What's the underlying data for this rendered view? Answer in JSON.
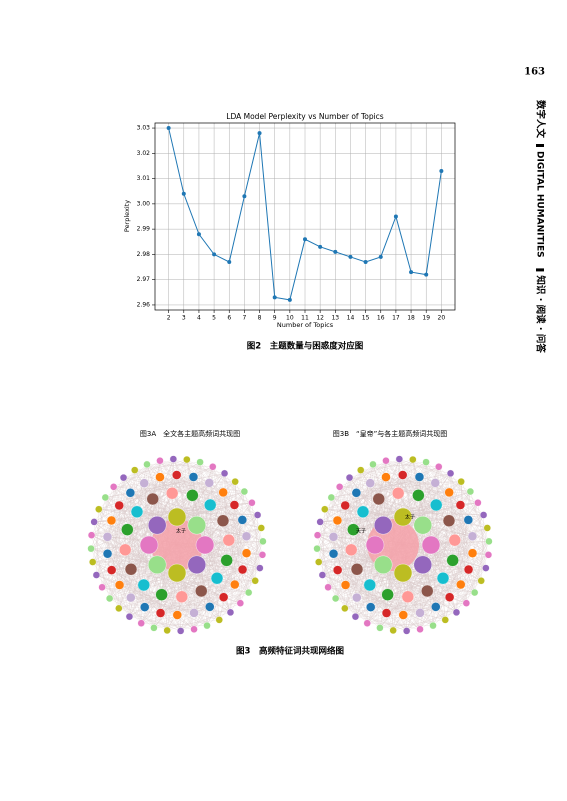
{
  "page_number": "163",
  "side_text": [
    "数字人文",
    "DIGITAL HUMANITIES",
    "知识 · 阅读 · 问答"
  ],
  "chart_data": {
    "type": "line",
    "title": "LDA Model Perplexity vs Number of Topics",
    "x_label": "Number of Topics",
    "y_label": "Perplexity",
    "x": [
      2,
      3,
      4,
      5,
      6,
      7,
      8,
      9,
      10,
      11,
      12,
      13,
      14,
      15,
      16,
      17,
      18,
      19,
      20
    ],
    "values": [
      3.03,
      3.004,
      2.988,
      2.98,
      2.977,
      3.003,
      3.028,
      2.963,
      2.962,
      2.986,
      2.983,
      2.981,
      2.979,
      2.977,
      2.979,
      2.995,
      2.973,
      2.972,
      3.013
    ],
    "color": "#1f77b4",
    "xlim": [
      1.1,
      20.9
    ],
    "ylim": [
      2.958,
      3.032
    ],
    "xticks": [
      2,
      3,
      4,
      5,
      6,
      7,
      8,
      9,
      10,
      11,
      12,
      13,
      14,
      15,
      16,
      17,
      18,
      19,
      20
    ],
    "yticks": [
      2.96,
      2.97,
      2.98,
      2.99,
      {
        "value": 3,
        "label": "3.00"
      },
      3.01,
      3.02,
      3.03
    ],
    "grid": true
  },
  "figure2_caption": "图2　主题数量与困惑度对应图",
  "figure3": {
    "panel_a": {
      "title": "图3A　全文各主题高频词共现图",
      "center_label": "太子"
    },
    "panel_b": {
      "title": "图3B　“皇帝”与各主题高频词共现图",
      "center_label": "太子",
      "left_label": "天子"
    },
    "caption": "图3　高频特征词共现网络图"
  }
}
